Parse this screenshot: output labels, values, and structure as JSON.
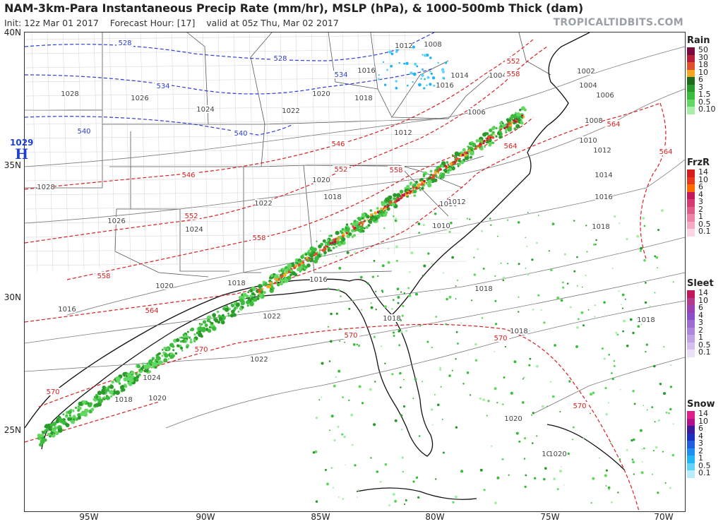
{
  "header": {
    "title": "NAM-3km-Para Instantaneous Precip Rate (mm/hr), MSLP (hPa), & 1000-500mb Thick (dam)",
    "init": "Init: 12z Mar 01 2017",
    "forecast": "Forecast Hour: [17]",
    "valid": "valid at 05z Thu, Mar 02 2017",
    "brand": "TROPICALTIDBITS.COM"
  },
  "axes": {
    "lat_labels": [
      "40N",
      "35N",
      "30N",
      "25N"
    ],
    "lon_labels": [
      "95W",
      "90W",
      "85W",
      "80W",
      "75W",
      "70W"
    ]
  },
  "high_pressure": {
    "pressure": "1029",
    "label": "H"
  },
  "isobar_labels": [
    "1008",
    "1012",
    "1016",
    "1014",
    "1004",
    "1016",
    "1020",
    "1018",
    "1022",
    "1012",
    "1028",
    "1026",
    "1024",
    "1022",
    "1020",
    "1018",
    "1016",
    "1012",
    "1010",
    "1006",
    "1002",
    "1004",
    "1006",
    "1008",
    "1010",
    "1012",
    "1014",
    "1016",
    "1018",
    "1028",
    "1026",
    "1024",
    "1022",
    "1020",
    "1018",
    "1016",
    "1018",
    "1018",
    "1018",
    "1016",
    "1022",
    "1024",
    "1020",
    "1018",
    "1018",
    "1020",
    "1022",
    "1020",
    "1020"
  ],
  "thickness_labels": {
    "blue": [
      "528",
      "528",
      "534",
      "534",
      "540",
      "540"
    ],
    "red": [
      "546",
      "546",
      "552",
      "552",
      "552",
      "558",
      "558",
      "558",
      "558",
      "564",
      "564",
      "564",
      "564",
      "570",
      "570",
      "570",
      "570",
      "570"
    ]
  },
  "legends": [
    {
      "title": "Rain",
      "levels": [
        "50",
        "30",
        "18",
        "10",
        "6",
        "3",
        "1.5",
        "0.5",
        "0.10"
      ],
      "colors": [
        "#7a0a3d",
        "#b81e3a",
        "#e0502c",
        "#f5a623",
        "#1a6b1a",
        "#2a9a2a",
        "#3cbc3c",
        "#62d862",
        "#a6efa6"
      ]
    },
    {
      "title": "FrzR",
      "levels": [
        "14",
        "10",
        "6",
        "4",
        "3",
        "2",
        "1",
        "0.5",
        "0.1"
      ],
      "colors": [
        "#d81b1b",
        "#e8391e",
        "#ff6a00",
        "#c2185b",
        "#d63a73",
        "#e25c8a",
        "#ec84a6",
        "#f4abc3",
        "#fbd6e2"
      ]
    },
    {
      "title": "Sleet",
      "levels": [
        "14",
        "10",
        "6",
        "4",
        "3",
        "2",
        "1",
        "0.5",
        "0.1"
      ],
      "colors": [
        "#c2185b",
        "#b23a8a",
        "#9c3fb0",
        "#8a4fc7",
        "#9b6bd2",
        "#ad86dc",
        "#c0a2e5",
        "#d4c0ee",
        "#ebe0f7"
      ]
    },
    {
      "title": "Snow",
      "levels": [
        "14",
        "10",
        "6",
        "4",
        "3",
        "2",
        "1",
        "0.5",
        "0.1"
      ],
      "colors": [
        "#e0208a",
        "#b0108a",
        "#3c1a9c",
        "#1a2fc0",
        "#1f5fe0",
        "#1e8ff0",
        "#22b4f4",
        "#5fd3f8",
        "#b8ecfc"
      ]
    }
  ]
}
